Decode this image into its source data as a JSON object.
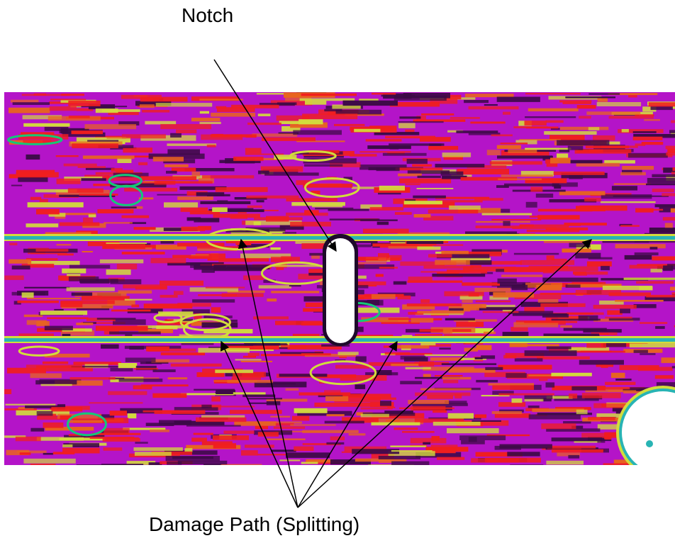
{
  "labels": {
    "notch": "Notch",
    "damage": "Damage Path (Splitting)"
  },
  "colors": {
    "background": "#ffffff",
    "scan_base": "#b414c8",
    "scan_red": "#f01e1e",
    "scan_dark": "#3c0a46",
    "scan_yellow": "#d2dc3c",
    "scan_green": "#14c878",
    "split_line": "#28b4b4",
    "notch_fill": "#ffffff",
    "arrow": "#000000"
  }
}
